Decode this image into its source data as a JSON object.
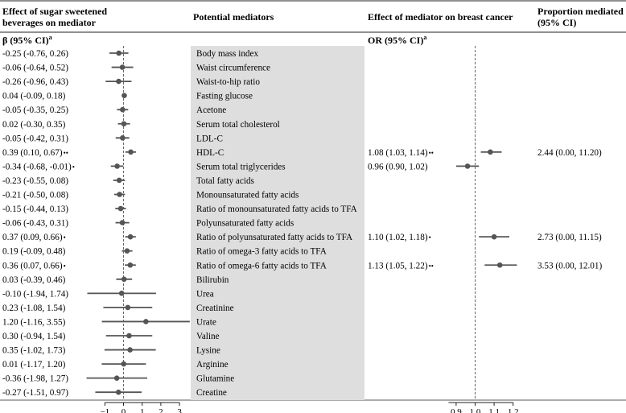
{
  "chart_data": {
    "type": "forest",
    "headers": {
      "effect_ssb": "Effect of sugar sweetened beverages on mediator",
      "effect_ssb_line1": "Effect of sugar sweetened",
      "effect_ssb_line2": "beverages on mediator",
      "mediators": "Potential mediators",
      "effect_bc": "Effect of mediator on breast cancer",
      "proportion": "Proportion mediated (95% CI)",
      "proportion_line1": "Proportion mediated",
      "proportion_line2": "(95% CI)",
      "beta_label": "β (95% CI)",
      "or_label": "OR (95% CI)",
      "footnote_mark": "a"
    },
    "left_axis": {
      "ticks": [
        -1,
        0,
        1,
        2,
        3
      ],
      "tick_labels": [
        "−1",
        "0",
        "1",
        "2",
        "3"
      ],
      "reference": 0
    },
    "right_axis": {
      "ticks": [
        0.9,
        1.0,
        1.1,
        1.2
      ],
      "tick_labels": [
        "0.9",
        "1.0",
        "1.1",
        "1.2"
      ],
      "reference": 1.0
    },
    "rows": [
      {
        "mediator": "Body mass index",
        "beta_text": "-0.25 (-0.76, 0.26)",
        "beta_sig": "",
        "beta": -0.25,
        "beta_lo": -0.76,
        "beta_hi": 0.26
      },
      {
        "mediator": "Waist circumference",
        "beta_text": "-0.06 (-0.64, 0.52)",
        "beta_sig": "",
        "beta": -0.06,
        "beta_lo": -0.64,
        "beta_hi": 0.52
      },
      {
        "mediator": "Waist-to-hip ratio",
        "beta_text": "-0.26 (-0.96, 0.43)",
        "beta_sig": "",
        "beta": -0.26,
        "beta_lo": -0.96,
        "beta_hi": 0.43
      },
      {
        "mediator": "Fasting glucose",
        "beta_text": "0.04 (-0.09, 0.18)",
        "beta_sig": "",
        "beta": 0.04,
        "beta_lo": -0.09,
        "beta_hi": 0.18
      },
      {
        "mediator": "Acetone",
        "beta_text": "-0.05 (-0.35, 0.25)",
        "beta_sig": "",
        "beta": -0.05,
        "beta_lo": -0.35,
        "beta_hi": 0.25
      },
      {
        "mediator": "Serum total cholesterol",
        "beta_text": "0.02 (-0.30, 0.35)",
        "beta_sig": "",
        "beta": 0.02,
        "beta_lo": -0.3,
        "beta_hi": 0.35
      },
      {
        "mediator": "LDL-C",
        "beta_text": "-0.05 (-0.42, 0.31)",
        "beta_sig": "",
        "beta": -0.05,
        "beta_lo": -0.42,
        "beta_hi": 0.31
      },
      {
        "mediator": "HDL-C",
        "beta_text": "0.39 (0.10, 0.67)",
        "beta_sig": "••",
        "beta": 0.39,
        "beta_lo": 0.1,
        "beta_hi": 0.67,
        "or_text": "1.08 (1.03, 1.14)",
        "or_sig": "••",
        "or": 1.08,
        "or_lo": 1.03,
        "or_hi": 1.14,
        "prop_text": "2.44 (0.00, 11.20)"
      },
      {
        "mediator": "Serum total triglycerides",
        "beta_text": "-0.34 (-0.68, -0.01)",
        "beta_sig": "•",
        "beta": -0.34,
        "beta_lo": -0.68,
        "beta_hi": -0.01,
        "or_text": "0.96 (0.90, 1.02)",
        "or_sig": "",
        "or": 0.96,
        "or_lo": 0.9,
        "or_hi": 1.02
      },
      {
        "mediator": "Total fatty acids",
        "beta_text": "-0.23 (-0.55, 0.08)",
        "beta_sig": "",
        "beta": -0.23,
        "beta_lo": -0.55,
        "beta_hi": 0.08
      },
      {
        "mediator": "Monounsaturated fatty acids",
        "beta_text": "-0.21 (-0.50, 0.08)",
        "beta_sig": "",
        "beta": -0.21,
        "beta_lo": -0.5,
        "beta_hi": 0.08
      },
      {
        "mediator": "Ratio of monounsaturated fatty acids to TFA",
        "beta_text": "-0.15 (-0.44, 0.13)",
        "beta_sig": "",
        "beta": -0.15,
        "beta_lo": -0.44,
        "beta_hi": 0.13
      },
      {
        "mediator": "Polyunsaturated fatty acids",
        "beta_text": "-0.06 (-0.43, 0.31)",
        "beta_sig": "",
        "beta": -0.06,
        "beta_lo": -0.43,
        "beta_hi": 0.31
      },
      {
        "mediator": "Ratio of polyunsaturated fatty acids to TFA",
        "beta_text": "0.37 (0.09, 0.66)",
        "beta_sig": "•",
        "beta": 0.37,
        "beta_lo": 0.09,
        "beta_hi": 0.66,
        "or_text": "1.10 (1.02, 1.18)",
        "or_sig": "•",
        "or": 1.1,
        "or_lo": 1.02,
        "or_hi": 1.18,
        "prop_text": "2.73 (0.00, 11.15)"
      },
      {
        "mediator": "Ratio of omega-3 fatty acids to TFA",
        "beta_text": "0.19 (-0.09, 0.48)",
        "beta_sig": "",
        "beta": 0.19,
        "beta_lo": -0.09,
        "beta_hi": 0.48
      },
      {
        "mediator": "Ratio of omega-6 fatty acids to TFA",
        "beta_text": "0.36 (0.07, 0.66)",
        "beta_sig": "•",
        "beta": 0.36,
        "beta_lo": 0.07,
        "beta_hi": 0.66,
        "or_text": "1.13 (1.05, 1.22)",
        "or_sig": "••",
        "or": 1.13,
        "or_lo": 1.05,
        "or_hi": 1.22,
        "prop_text": "3.53 (0.00, 12.01)"
      },
      {
        "mediator": "Bilirubin",
        "beta_text": "0.03 (-0.39, 0.46)",
        "beta_sig": "",
        "beta": 0.03,
        "beta_lo": -0.39,
        "beta_hi": 0.46
      },
      {
        "mediator": "Urea",
        "beta_text": "-0.10 (-1.94, 1.74)",
        "beta_sig": "",
        "beta": -0.1,
        "beta_lo": -1.94,
        "beta_hi": 1.74
      },
      {
        "mediator": "Creatinine",
        "beta_text": "0.23 (-1.08, 1.54)",
        "beta_sig": "",
        "beta": 0.23,
        "beta_lo": -1.08,
        "beta_hi": 1.54
      },
      {
        "mediator": "Urate",
        "beta_text": "1.20 (-1.16, 3.55)",
        "beta_sig": "",
        "beta": 1.2,
        "beta_lo": -1.16,
        "beta_hi": 3.55
      },
      {
        "mediator": "Valine",
        "beta_text": "0.30 (-0.94, 1.54)",
        "beta_sig": "",
        "beta": 0.3,
        "beta_lo": -0.94,
        "beta_hi": 1.54
      },
      {
        "mediator": "Lysine",
        "beta_text": "0.35 (-1.02, 1.73)",
        "beta_sig": "",
        "beta": 0.35,
        "beta_lo": -1.02,
        "beta_hi": 1.73
      },
      {
        "mediator": "Arginine",
        "beta_text": "0.01 (-1.17, 1.20)",
        "beta_sig": "",
        "beta": 0.01,
        "beta_lo": -1.17,
        "beta_hi": 1.2
      },
      {
        "mediator": "Glutamine",
        "beta_text": "-0.36 (-1.98, 1.27)",
        "beta_sig": "",
        "beta": -0.36,
        "beta_lo": -1.98,
        "beta_hi": 1.27
      },
      {
        "mediator": "Creatine",
        "beta_text": "-0.27 (-1.51, 0.97)",
        "beta_sig": "",
        "beta": -0.27,
        "beta_lo": -1.51,
        "beta_hi": 0.97
      }
    ]
  }
}
